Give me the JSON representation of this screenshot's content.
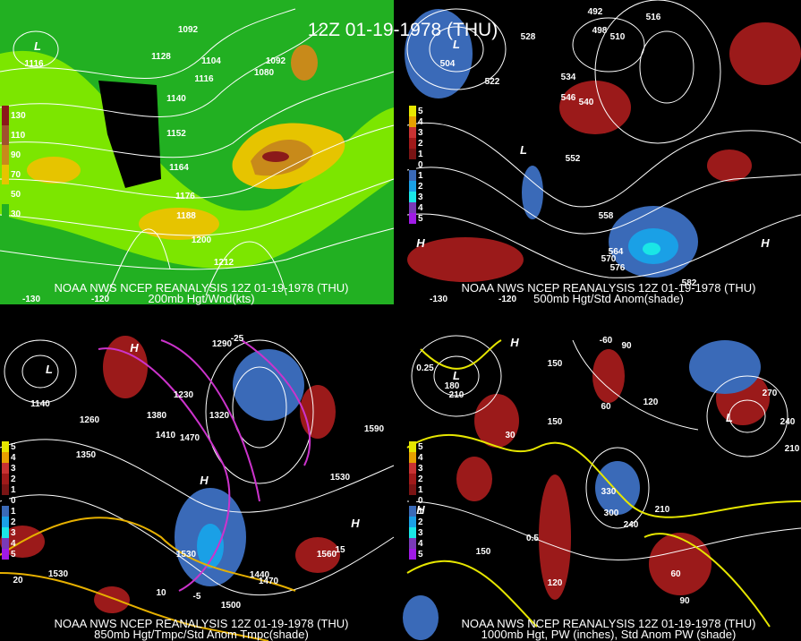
{
  "title": "12Z 01-19-1978 (THU)",
  "panels": [
    {
      "caption": [
        "NOAA NWS NCEP REANALYSIS 12Z 01-19-1978 (THU)",
        "200mb Hgt/Wnd(kts)"
      ],
      "legend": [
        "130",
        "110",
        "90",
        "70",
        "50",
        "30"
      ],
      "labels": [
        "1092",
        "1128",
        "1104",
        "1116",
        "1140",
        "1152",
        "1164",
        "1176",
        "1188",
        "1200",
        "1212",
        "1080",
        "1092",
        "L",
        "1116",
        "-130",
        "-120"
      ]
    },
    {
      "caption": [
        "NOAA NWS NCEP REANALYSIS 12Z 01-19-1978 (THU)",
        "500mb Hgt/Std Anom(shade)"
      ],
      "legend": [
        "5",
        "4",
        "3",
        "2",
        "1",
        "0",
        "1",
        "2",
        "3",
        "4",
        "5"
      ],
      "labels": [
        "492",
        "516",
        "528",
        "498",
        "510",
        "504",
        "522",
        "534",
        "546",
        "540",
        "552",
        "558",
        "564",
        "570",
        "576",
        "582",
        "L",
        "L",
        "H",
        "H",
        "-130",
        "-120"
      ]
    },
    {
      "caption": [
        "NOAA NWS NCEP REANALYSIS 12Z 01-19-1978 (THU)",
        "850mb Hgt/Tmpc/Std Anom Tmpc(shade)"
      ],
      "legend": [
        "5",
        "4",
        "3",
        "2",
        "1",
        "0",
        "1",
        "2",
        "3",
        "4",
        "5"
      ],
      "labels": [
        "-25",
        "1380",
        "1290",
        "1230",
        "1350",
        "1470",
        "1530",
        "1590",
        "1560",
        "1440",
        "1500",
        "1410",
        "1320",
        "1140",
        "1260",
        "1530",
        "1530",
        "1470",
        "-5",
        "10",
        "15",
        "20",
        "L",
        "H",
        "H",
        "H"
      ]
    },
    {
      "caption": [
        "NOAA NWS NCEP REANALYSIS 12Z 01-19-1978 (THU)",
        "1000mb Hgt, PW (inches), Std Anom PW (shade)"
      ],
      "legend": [
        "5",
        "4",
        "3",
        "2",
        "1",
        "0",
        "1",
        "2",
        "3",
        "4",
        "5"
      ],
      "labels": [
        "-60",
        "90",
        "150",
        "210",
        "180",
        "120",
        "60",
        "30",
        "150",
        "330",
        "300",
        "240",
        "210",
        "270",
        "240",
        "210",
        "120",
        "150",
        "90",
        "60",
        "0.25",
        "0.5",
        "L",
        "L",
        "H",
        "H"
      ]
    }
  ]
}
